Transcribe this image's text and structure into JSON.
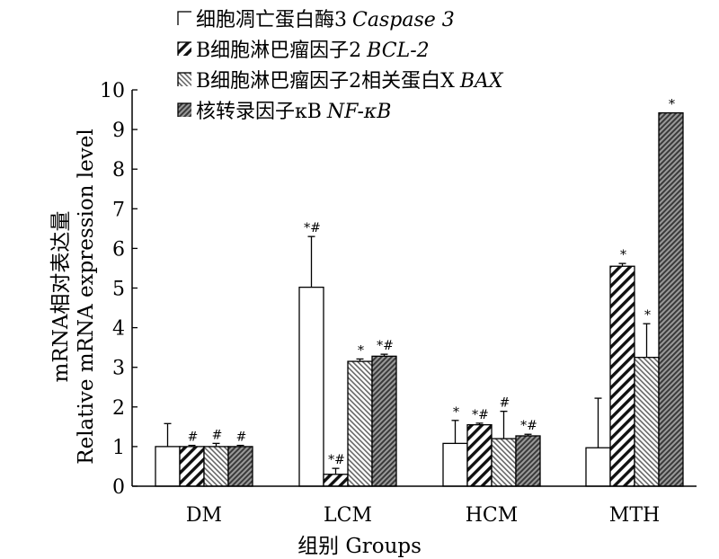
{
  "chart_data": {
    "type": "bar",
    "categories": [
      "DM",
      "LCM",
      "HCM",
      "MTH"
    ],
    "series": [
      {
        "name_cn": "细胞凋亡蛋白酶3",
        "name_en": "Caspase 3",
        "pattern": "blank",
        "values": [
          1.0,
          5.02,
          1.08,
          0.97
        ],
        "errors": [
          0.58,
          1.28,
          0.58,
          1.25
        ],
        "labels": [
          "",
          "*#",
          "*",
          ""
        ]
      },
      {
        "name_cn": "B细胞淋巴瘤因子2",
        "name_en": "BCL-2",
        "pattern": "wide-hatch",
        "values": [
          1.0,
          0.3,
          1.55,
          5.55
        ],
        "errors": [
          0.03,
          0.15,
          0.04,
          0.07
        ],
        "labels": [
          "#",
          "*#",
          "*#",
          "*"
        ]
      },
      {
        "name_cn": "B细胞淋巴瘤因子2相关蛋白X",
        "name_en": "BAX",
        "pattern": "narrow-hatch",
        "values": [
          1.0,
          3.15,
          1.2,
          3.25
        ],
        "errors": [
          0.08,
          0.06,
          0.69,
          0.85
        ],
        "labels": [
          "#",
          "*",
          "#",
          "*"
        ]
      },
      {
        "name_cn": "核转录因子κB",
        "name_en": "NF-κB",
        "pattern": "dark-hatch",
        "values": [
          1.0,
          3.28,
          1.27,
          9.42
        ],
        "errors": [
          0.03,
          0.05,
          0.04,
          0.0
        ],
        "labels": [
          "#",
          "*#",
          "*#",
          "*"
        ]
      }
    ],
    "ylim": [
      0,
      10
    ],
    "yticks": [
      "0",
      "1",
      "2",
      "3",
      "4",
      "5",
      "6",
      "7",
      "8",
      "9",
      "10"
    ],
    "ylabel_cn": "mRNA相对表达量",
    "ylabel_en": "Relative mRNA expression level",
    "xlabel": "组别 Groups",
    "legend_position": "top"
  }
}
